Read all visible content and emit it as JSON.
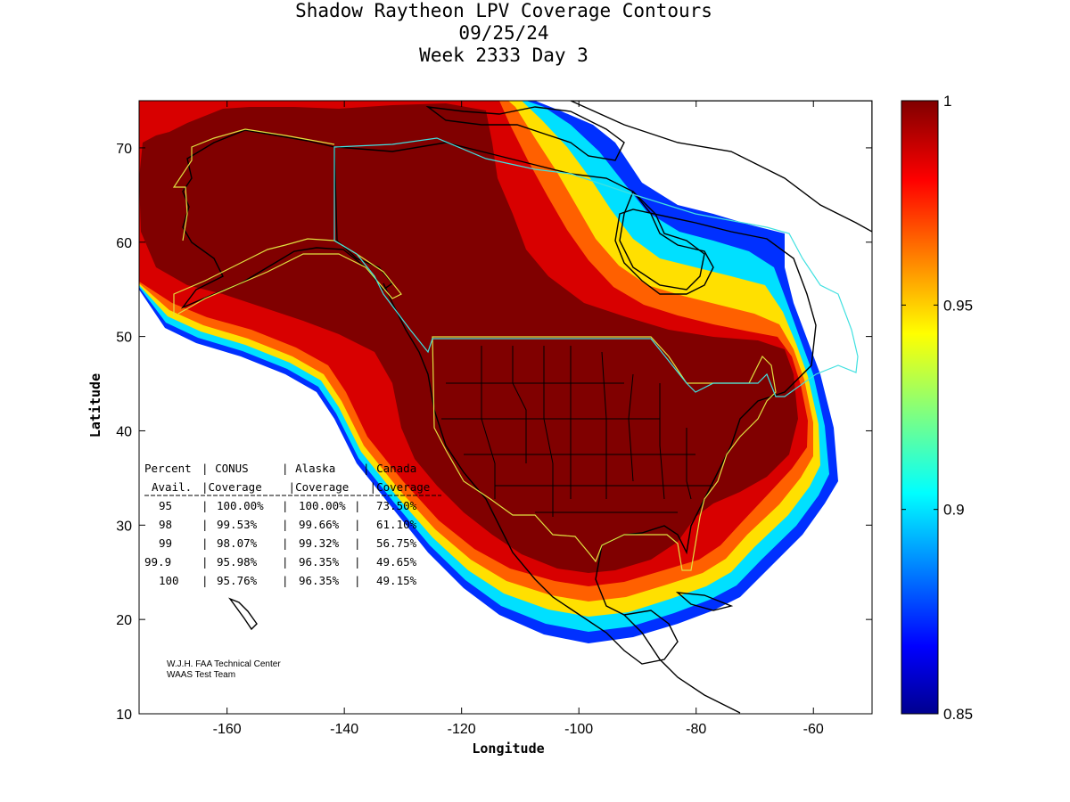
{
  "title": {
    "line1": "Shadow Raytheon LPV Coverage Contours",
    "line2": "09/25/24",
    "line3": "Week 2333 Day 3"
  },
  "axes": {
    "xlabel": "Longitude",
    "ylabel": "Latitude",
    "xlim": [
      -175,
      -50
    ],
    "ylim": [
      10,
      75
    ],
    "xticks": [
      -160,
      -140,
      -120,
      -100,
      -80,
      -60
    ],
    "yticks": [
      10,
      20,
      30,
      40,
      50,
      60,
      70
    ]
  },
  "colorbar": {
    "range": [
      0.85,
      1.0
    ],
    "ticks": [
      "1",
      "0.95",
      "0.9",
      "0.85"
    ],
    "tick_values": [
      1.0,
      0.95,
      0.9,
      0.85
    ],
    "colormap": "jet"
  },
  "coverage_table": {
    "header1": [
      "Percent",
      "CONUS",
      "Alaska",
      "Canada"
    ],
    "header2": [
      "Avail.",
      "Coverage",
      "Coverage",
      "Coverage"
    ],
    "rows": [
      [
        "95",
        "100.00%",
        "100.00%",
        "73.50%"
      ],
      [
        "98",
        "99.53%",
        "99.66%",
        "61.10%"
      ],
      [
        "99",
        "98.07%",
        "99.32%",
        "56.75%"
      ],
      [
        "99.9",
        "95.98%",
        "96.35%",
        "49.65%"
      ],
      [
        "100",
        "95.76%",
        "96.35%",
        "49.15%"
      ]
    ]
  },
  "credits": {
    "line1": "W.J.H. FAA Technical Center",
    "line2": "WAAS Test Team"
  },
  "colors": {
    "max_coverage": "#800000",
    "boundary_conus_alaska": "#e0e040",
    "boundary_canada": "#40e0e0",
    "coastline": "#000000"
  }
}
